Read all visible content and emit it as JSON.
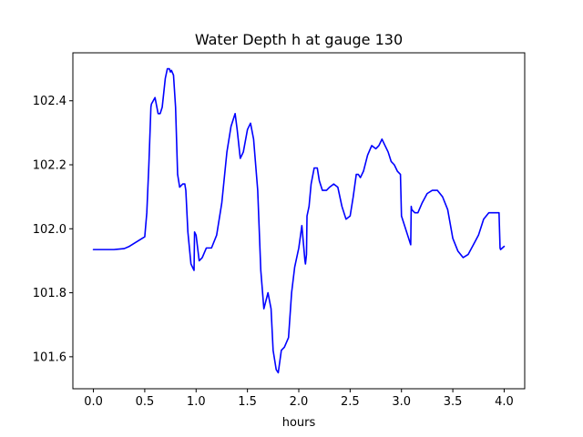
{
  "chart_data": {
    "type": "line",
    "title": "Water Depth h at gauge 130",
    "xlabel": "hours",
    "ylabel": "",
    "xlim": [
      -0.2,
      4.2
    ],
    "ylim": [
      101.5,
      102.55
    ],
    "xticks": [
      0.0,
      0.5,
      1.0,
      1.5,
      2.0,
      2.5,
      3.0,
      3.5,
      4.0
    ],
    "xtick_labels": [
      "0.0",
      "0.5",
      "1.0",
      "1.5",
      "2.0",
      "2.5",
      "3.0",
      "3.5",
      "4.0"
    ],
    "yticks": [
      101.6,
      101.8,
      102.0,
      102.2,
      102.4
    ],
    "ytick_labels": [
      "101.6",
      "101.8",
      "102.0",
      "102.2",
      "102.4"
    ],
    "grid": false,
    "legend": "none",
    "series": [
      {
        "color": "#0000ff",
        "x": [
          0.0,
          0.1,
          0.2,
          0.3,
          0.35,
          0.4,
          0.45,
          0.5,
          0.52,
          0.54,
          0.56,
          0.565,
          0.6,
          0.63,
          0.65,
          0.67,
          0.7,
          0.72,
          0.74,
          0.75,
          0.76,
          0.78,
          0.8,
          0.82,
          0.84,
          0.87,
          0.89,
          0.9,
          0.92,
          0.95,
          0.98,
          0.985,
          1.0,
          1.03,
          1.06,
          1.1,
          1.15,
          1.2,
          1.25,
          1.3,
          1.34,
          1.38,
          1.4,
          1.43,
          1.46,
          1.5,
          1.53,
          1.56,
          1.6,
          1.63,
          1.66,
          1.7,
          1.73,
          1.75,
          1.78,
          1.8,
          1.83,
          1.86,
          1.9,
          1.93,
          1.96,
          2.0,
          2.03,
          2.06,
          2.065,
          2.075,
          2.08,
          2.1,
          2.12,
          2.15,
          2.18,
          2.2,
          2.23,
          2.27,
          2.3,
          2.34,
          2.38,
          2.42,
          2.46,
          2.5,
          2.53,
          2.56,
          2.58,
          2.6,
          2.63,
          2.67,
          2.71,
          2.75,
          2.78,
          2.81,
          2.84,
          2.87,
          2.9,
          2.93,
          2.96,
          2.99,
          3.0,
          3.03,
          3.06,
          3.09,
          3.095,
          3.1,
          3.13,
          3.16,
          3.2,
          3.25,
          3.3,
          3.35,
          3.4,
          3.45,
          3.5,
          3.55,
          3.6,
          3.65,
          3.7,
          3.75,
          3.8,
          3.85,
          3.9,
          3.95,
          3.96,
          3.965,
          4.0
        ],
        "y": [
          101.935,
          101.935,
          101.935,
          101.938,
          101.945,
          101.955,
          101.965,
          101.975,
          102.05,
          102.2,
          102.38,
          102.39,
          102.41,
          102.36,
          102.36,
          102.38,
          102.47,
          102.5,
          102.5,
          102.49,
          102.495,
          102.48,
          102.38,
          102.17,
          102.13,
          102.14,
          102.14,
          102.12,
          101.99,
          101.89,
          101.87,
          101.99,
          101.98,
          101.9,
          101.91,
          101.94,
          101.94,
          101.98,
          102.08,
          102.24,
          102.32,
          102.36,
          102.31,
          102.22,
          102.24,
          102.31,
          102.33,
          102.28,
          102.12,
          101.87,
          101.75,
          101.8,
          101.75,
          101.62,
          101.56,
          101.55,
          101.62,
          101.63,
          101.66,
          101.8,
          101.88,
          101.94,
          102.01,
          101.9,
          101.89,
          101.92,
          102.04,
          102.07,
          102.14,
          102.19,
          102.19,
          102.15,
          102.12,
          102.12,
          102.13,
          102.14,
          102.13,
          102.07,
          102.03,
          102.04,
          102.1,
          102.17,
          102.17,
          102.16,
          102.18,
          102.23,
          102.26,
          102.25,
          102.26,
          102.28,
          102.26,
          102.24,
          102.21,
          102.2,
          102.18,
          102.17,
          102.04,
          102.01,
          101.98,
          101.95,
          102.07,
          102.06,
          102.05,
          102.05,
          102.08,
          102.11,
          102.12,
          102.12,
          102.1,
          102.06,
          101.97,
          101.93,
          101.91,
          101.92,
          101.95,
          101.98,
          102.03,
          102.05,
          102.05,
          102.05,
          101.94,
          101.935,
          101.945
        ]
      }
    ]
  }
}
